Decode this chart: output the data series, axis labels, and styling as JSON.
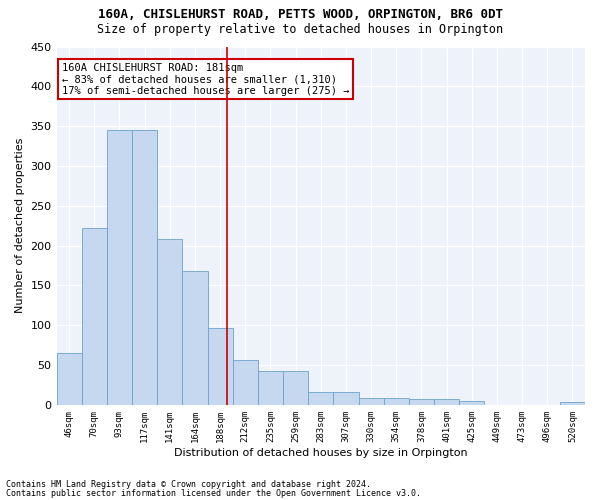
{
  "title": "160A, CHISLEHURST ROAD, PETTS WOOD, ORPINGTON, BR6 0DT",
  "subtitle": "Size of property relative to detached houses in Orpington",
  "xlabel": "Distribution of detached houses by size in Orpington",
  "ylabel": "Number of detached properties",
  "bar_color": "#c5d8f0",
  "bar_edge_color": "#6ea3cc",
  "categories": [
    "46sqm",
    "70sqm",
    "93sqm",
    "117sqm",
    "141sqm",
    "164sqm",
    "188sqm",
    "212sqm",
    "235sqm",
    "259sqm",
    "283sqm",
    "307sqm",
    "330sqm",
    "354sqm",
    "378sqm",
    "401sqm",
    "425sqm",
    "449sqm",
    "473sqm",
    "496sqm",
    "520sqm"
  ],
  "values": [
    65,
    222,
    345,
    345,
    208,
    168,
    97,
    56,
    42,
    42,
    16,
    16,
    8,
    8,
    7,
    7,
    5,
    0,
    0,
    0,
    4
  ],
  "vline_x": 6.27,
  "vline_color": "#cc0000",
  "annotation_text": "160A CHISLEHURST ROAD: 181sqm\n← 83% of detached houses are smaller (1,310)\n17% of semi-detached houses are larger (275) →",
  "annotation_box_color": "white",
  "annotation_box_edge_color": "#cc0000",
  "ylim": [
    0,
    450
  ],
  "yticks": [
    0,
    50,
    100,
    150,
    200,
    250,
    300,
    350,
    400,
    450
  ],
  "background_color": "#eef2fb",
  "footer1": "Contains HM Land Registry data © Crown copyright and database right 2024.",
  "footer2": "Contains public sector information licensed under the Open Government Licence v3.0."
}
